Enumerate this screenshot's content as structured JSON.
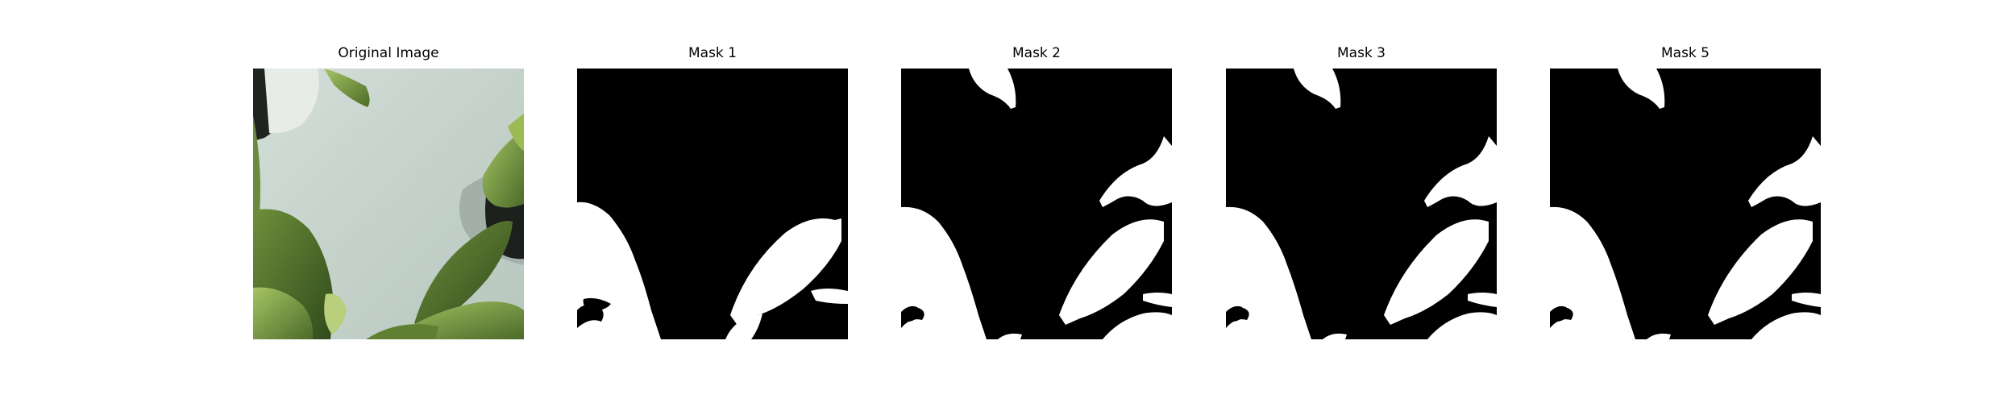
{
  "panels": [
    {
      "title": "Original Image",
      "kind": "photo"
    },
    {
      "title": "Mask 1",
      "kind": "mask"
    },
    {
      "title": "Mask 2",
      "kind": "mask"
    },
    {
      "title": "Mask 3",
      "kind": "mask"
    },
    {
      "title": "Mask 5",
      "kind": "mask"
    }
  ],
  "colors": {
    "background": "#ffffff",
    "mask_background": "#000000",
    "mask_foreground": "#ffffff",
    "photo_wall": "#c4d3cc",
    "leaf_dark": "#3d5a23",
    "leaf_light": "#8fb04f"
  }
}
